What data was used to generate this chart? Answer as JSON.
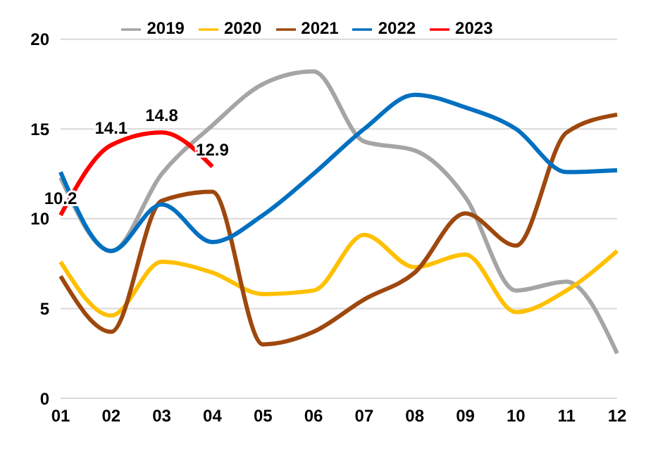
{
  "chart_data": {
    "type": "line",
    "categories": [
      "01",
      "02",
      "03",
      "04",
      "05",
      "06",
      "07",
      "08",
      "09",
      "10",
      "11",
      "12"
    ],
    "series": [
      {
        "name": "2019",
        "color": "#a5a5a5",
        "values": [
          12.3,
          8.2,
          12.5,
          15.2,
          17.5,
          18.2,
          14.3,
          13.8,
          11.2,
          6.0,
          6.5,
          2.5
        ]
      },
      {
        "name": "2020",
        "color": "#ffc000",
        "values": [
          7.6,
          4.6,
          7.6,
          7.0,
          5.8,
          6.0,
          9.1,
          7.3,
          8.0,
          4.8,
          6.0,
          8.2
        ]
      },
      {
        "name": "2021",
        "color": "#9e480e",
        "values": [
          6.8,
          3.7,
          11.0,
          11.5,
          3.0,
          3.7,
          5.5,
          7.0,
          10.3,
          8.5,
          14.8,
          15.8
        ]
      },
      {
        "name": "2022",
        "color": "#0070c0",
        "values": [
          12.6,
          8.2,
          10.8,
          8.7,
          10.2,
          12.5,
          15.0,
          16.9,
          16.2,
          15.0,
          12.6,
          12.7
        ]
      },
      {
        "name": "2023",
        "color": "#ff0000",
        "values": [
          10.2,
          14.1,
          14.8,
          12.9,
          null,
          null,
          null,
          null,
          null,
          null,
          null,
          null
        ],
        "value_labels": [
          "10.2",
          "14.1",
          "14.8",
          "12.9",
          null,
          null,
          null,
          null,
          null,
          null,
          null,
          null
        ]
      }
    ],
    "ylim": [
      0,
      20
    ],
    "yticks": [
      0,
      5,
      10,
      15,
      20
    ],
    "grid": "y",
    "legend": "top",
    "marker": "none"
  }
}
